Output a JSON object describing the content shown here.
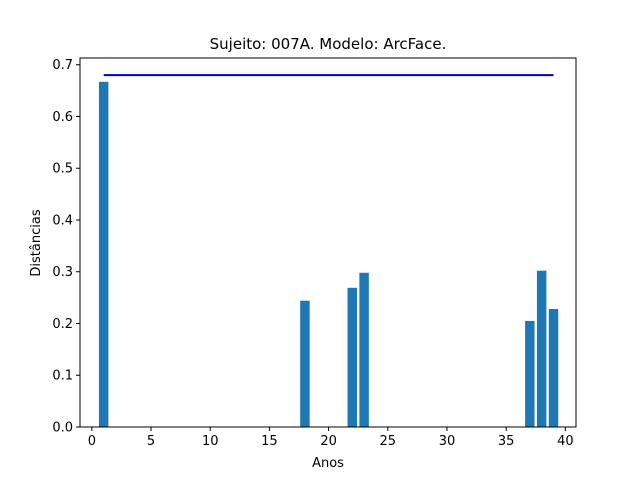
{
  "chart_data": {
    "type": "bar",
    "title": "Sujeito: 007A. Modelo: ArcFace.",
    "xlabel": "Anos",
    "ylabel": "Distâncias",
    "xlim": [
      -1.0,
      40.9
    ],
    "ylim": [
      0,
      0.713
    ],
    "xticks": [
      0,
      5,
      10,
      15,
      20,
      25,
      30,
      35,
      40
    ],
    "yticks": [
      0.0,
      0.1,
      0.2,
      0.3,
      0.4,
      0.5,
      0.6,
      0.7
    ],
    "grid": false,
    "bar_color": "#1f77b4",
    "bar_width": 0.8,
    "bars": [
      {
        "x": 1,
        "value": 0.667
      },
      {
        "x": 18,
        "value": 0.244
      },
      {
        "x": 22,
        "value": 0.269
      },
      {
        "x": 23,
        "value": 0.298
      },
      {
        "x": 37,
        "value": 0.205
      },
      {
        "x": 38,
        "value": 0.302
      },
      {
        "x": 39,
        "value": 0.228
      }
    ],
    "threshold_line": {
      "x_start": 1,
      "x_end": 39,
      "y": 0.68,
      "color": "#0000cc"
    }
  }
}
